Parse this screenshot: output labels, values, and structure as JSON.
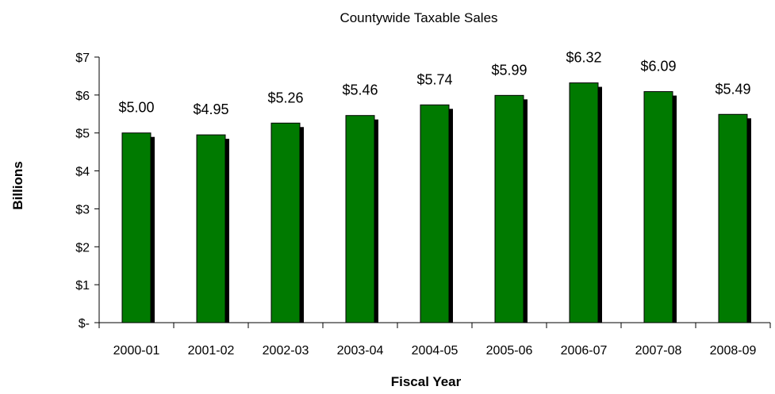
{
  "chart_data": {
    "type": "bar",
    "title": "Countywide Taxable Sales",
    "xlabel": "Fiscal Year",
    "ylabel": "Billions",
    "categories": [
      "2000-01",
      "2001-02",
      "2002-03",
      "2003-04",
      "2004-05",
      "2005-06",
      "2006-07",
      "2007-08",
      "2008-09"
    ],
    "values": [
      5.0,
      4.95,
      5.26,
      5.46,
      5.74,
      5.99,
      6.32,
      6.09,
      5.49
    ],
    "data_labels": [
      "$5.00",
      "$4.95",
      "$5.26",
      "$5.46",
      "$5.74",
      "$5.99",
      "$6.32",
      "$6.09",
      "$5.49"
    ],
    "yticks": [
      0,
      1,
      2,
      3,
      4,
      5,
      6,
      7
    ],
    "ytick_labels": [
      "$-",
      "$1",
      "$2",
      "$3",
      "$4",
      "$5",
      "$6",
      "$7"
    ],
    "ylim": [
      0,
      7
    ],
    "grid": false,
    "legend": "none",
    "colors": {
      "bar": "#007a00",
      "bar_shadow": "#000000",
      "axis": "#000000"
    }
  }
}
